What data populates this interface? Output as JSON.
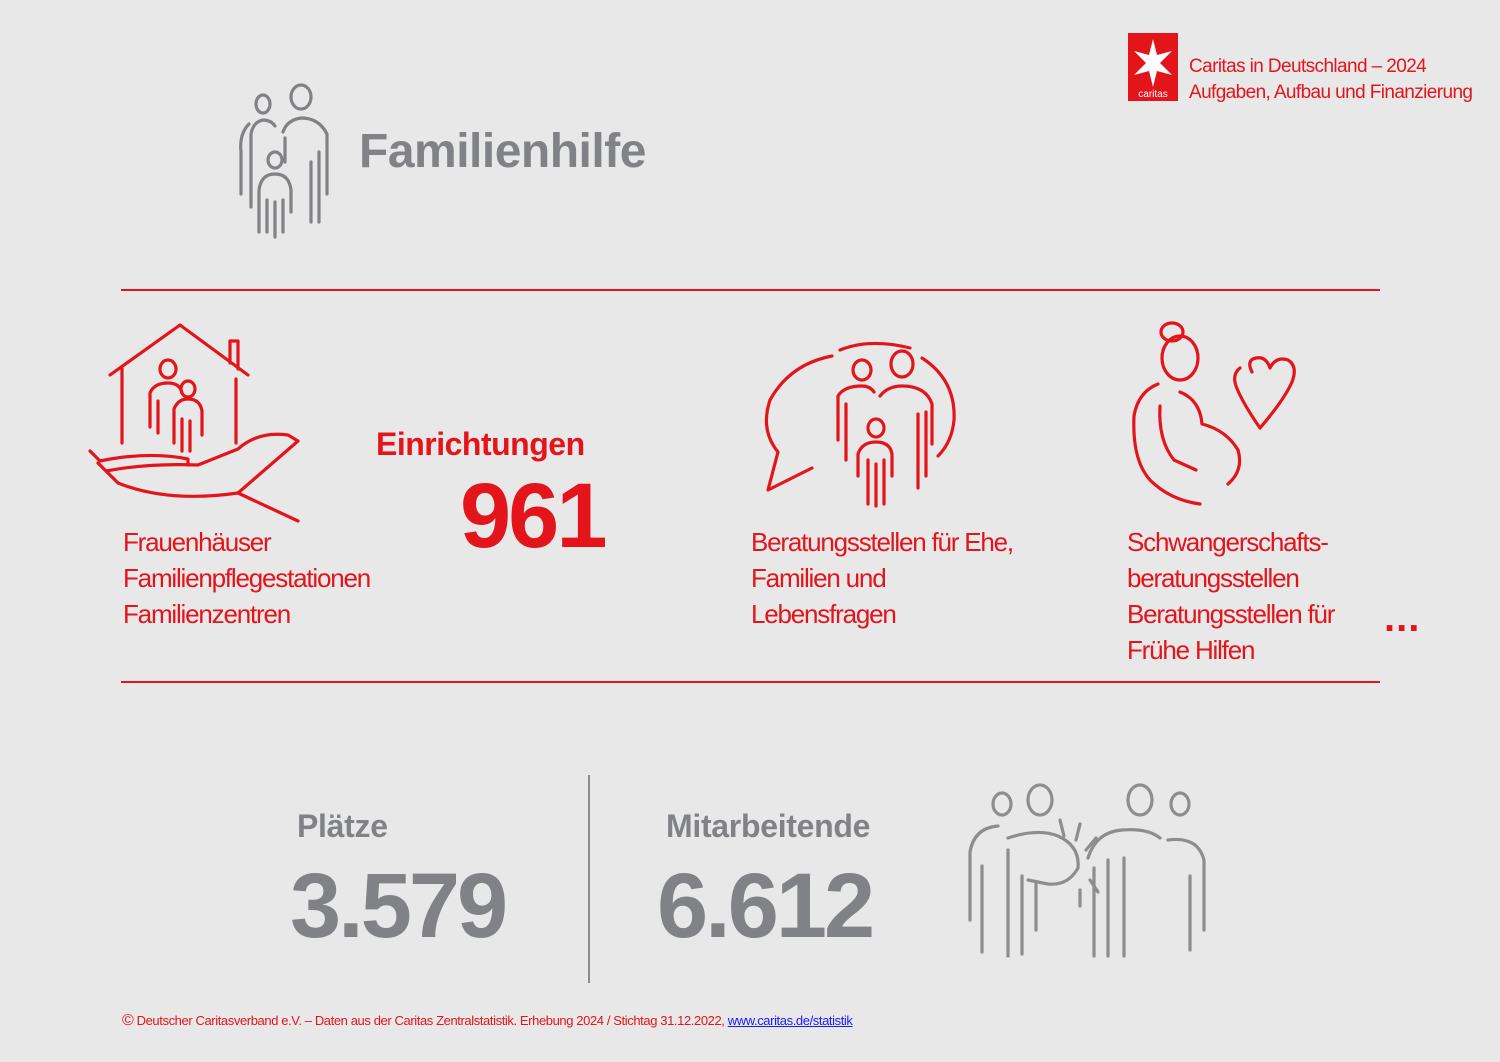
{
  "header": {
    "logo_text": "caritas",
    "line1": "Caritas in Deutschland – 2024",
    "line2": "Aufgaben, Aufbau und Finanzierung"
  },
  "page_title": "Familienhilfe",
  "facility_groups": [
    {
      "icon": "house-hand-family-icon",
      "lines": [
        "Frauenhäuser",
        "Familienpflegestationen",
        "Familienzentren"
      ]
    },
    {
      "icon": "speech-bubble-family-icon",
      "lines": [
        "Beratungsstellen für Ehe,",
        "Familien und",
        "Lebensfragen"
      ]
    },
    {
      "icon": "pregnant-woman-heart-icon",
      "lines": [
        "Schwangerschafts-",
        "beratungsstellen",
        "Beratungsstellen für",
        "Frühe Hilfen"
      ]
    }
  ],
  "einrichtungen": {
    "label": "Einrichtungen",
    "value": "961"
  },
  "more_indicator": "...",
  "plaetze": {
    "label": "Plätze",
    "value": "3.579"
  },
  "mitarbeitende": {
    "label": "Mitarbeitende",
    "value": "6.612"
  },
  "footer": {
    "copyright_symbol": "©",
    "text": "Deutscher Caritasverband e.V. – Daten aus der Caritas Zentralstatistik. Erhebung 2024 / Stichtag 31.12.2022,",
    "link_text": "www.caritas.de/statistik"
  },
  "colors": {
    "accent": "#e4141b",
    "grey": "#818285",
    "background": "#e8e8e9"
  }
}
